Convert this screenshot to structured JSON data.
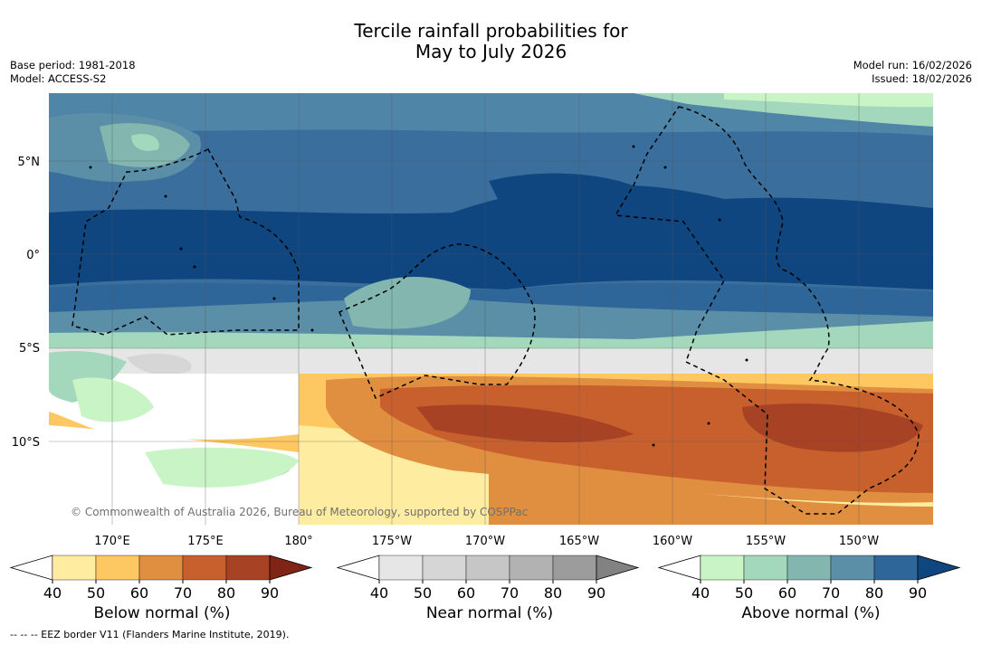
{
  "title_line1": "Tercile rainfall probabilities for",
  "title_line2": "May to July 2026",
  "meta_left": [
    "Base period: 1981-2018",
    "Model: ACCESS-S2"
  ],
  "meta_right": [
    "Model run: 16/02/2026",
    "Issued: 18/02/2026"
  ],
  "map": {
    "lat_labels": [
      "5°N",
      "0°",
      "5°S",
      "10°S"
    ],
    "lon_labels": [
      "170°E",
      "175°E",
      "180°",
      "175°W",
      "170°W",
      "165°W",
      "160°W",
      "155°W",
      "150°W"
    ],
    "copyright": "© Commonwealth of Australia 2026, Bureau of Meteorology, supported by COSPPac"
  },
  "colorbars": [
    {
      "label": "Below normal (%)",
      "ticks": [
        "40",
        "50",
        "60",
        "70",
        "80",
        "90"
      ],
      "colors": [
        "#ffffff",
        "#feeca0",
        "#fdc862",
        "#e08e40",
        "#c8602e",
        "#a84224",
        "#7f2416"
      ]
    },
    {
      "label": "Near normal (%)",
      "ticks": [
        "40",
        "50",
        "60",
        "70",
        "80",
        "90"
      ],
      "colors": [
        "#ffffff",
        "#e6e6e6",
        "#d6d6d6",
        "#c6c6c6",
        "#b2b2b2",
        "#9c9c9c",
        "#828282"
      ]
    },
    {
      "label": "Above normal (%)",
      "ticks": [
        "40",
        "50",
        "60",
        "70",
        "80",
        "90"
      ],
      "colors": [
        "#ffffff",
        "#c9f5c6",
        "#a3d8bd",
        "#82b6ae",
        "#5a8fa7",
        "#2f6699",
        "#0f4680"
      ]
    }
  ],
  "legend_note": "-- -- -- EEZ border V11 (Flanders Marine Institute, 2019)."
}
